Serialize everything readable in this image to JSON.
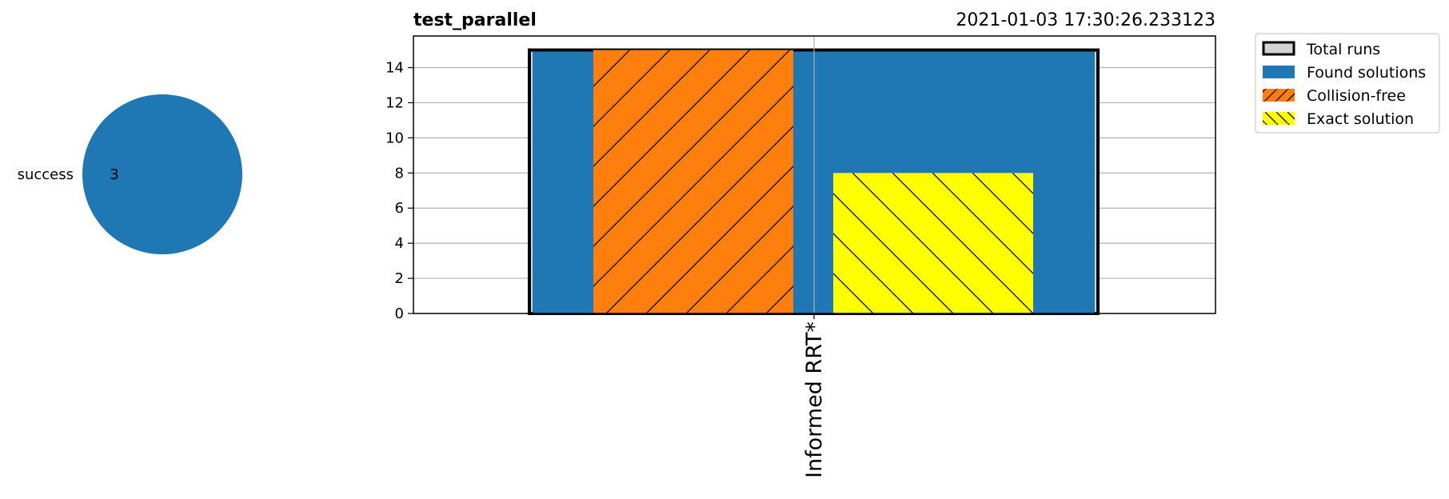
{
  "chart_data": [
    {
      "type": "pie",
      "slices": [
        {
          "label": "success",
          "value": 3,
          "value_label": "3",
          "color": "#1f77b4"
        }
      ]
    },
    {
      "type": "bar",
      "title": "test_parallel",
      "subtitle": "2021-01-03 17:30:26.233123",
      "categories": [
        "Informed RRT*"
      ],
      "ylim": [
        0,
        15.8
      ],
      "yticks": [
        0,
        2,
        4,
        6,
        8,
        10,
        12,
        14
      ],
      "grid": true,
      "legend_position": "outside-top-right",
      "series": [
        {
          "name": "Total runs",
          "values": [
            15
          ],
          "color": "#d3d3d3",
          "edge": "#000000",
          "hatch": "none"
        },
        {
          "name": "Found solutions",
          "values": [
            15
          ],
          "color": "#1f77b4",
          "hatch": "none"
        },
        {
          "name": "Collision-free",
          "values": [
            15
          ],
          "color": "#ff7f0e",
          "hatch": "/"
        },
        {
          "name": "Exact solution",
          "values": [
            8
          ],
          "color": "#ffff00",
          "hatch": "\\"
        }
      ]
    }
  ]
}
